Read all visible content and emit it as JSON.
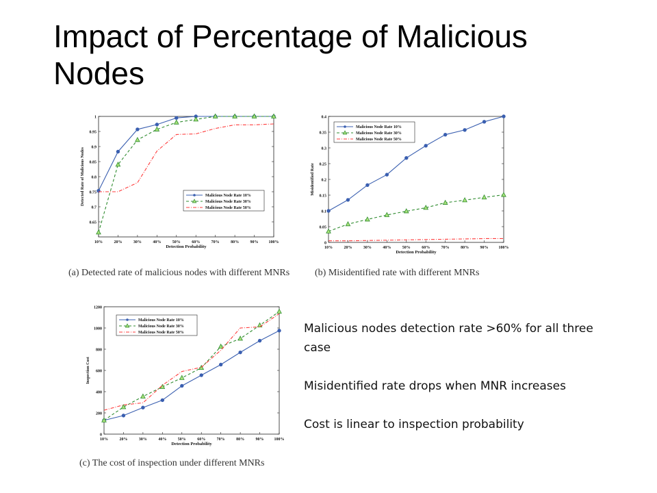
{
  "slide": {
    "title": "Impact of Percentage of Malicious Nodes",
    "bullets": [
      "Malicious nodes detection rate >60% for all three case",
      "Misidentified rate drops when MNR increases",
      "Cost is linear to inspection probability"
    ]
  },
  "colors": {
    "s10": "#3a5fb0",
    "s30": "#2e8b2e",
    "s50": "#ff3b3b",
    "marker30_fill": "#a9e27a"
  },
  "chart_data": [
    {
      "type": "line",
      "caption": "(a) Detected rate of malicious nodes with different MNRs",
      "xlabel": "Detection Probability",
      "ylabel": "Detected Rate of Malicious Nodes",
      "categories": [
        "10%",
        "20%",
        "30%",
        "40%",
        "50%",
        "60%",
        "70%",
        "80%",
        "90%",
        "100%"
      ],
      "ylim": [
        0.6,
        1.0
      ],
      "yticks": [
        0.65,
        0.7,
        0.75,
        0.8,
        0.85,
        0.9,
        0.95,
        1
      ],
      "ytick_labels": [
        "0.65",
        "0.7",
        "0.75",
        "0.8",
        "0.85",
        "0.9",
        "0.95",
        "1"
      ],
      "legend_position": "center-right",
      "series": [
        {
          "name": "Malicious Node Rate 10%",
          "style": "solid",
          "marker": "circle",
          "values": [
            0.753,
            0.883,
            0.957,
            0.973,
            0.995,
            1.0,
            1.0,
            1.0,
            1.0,
            1.0
          ]
        },
        {
          "name": "Malicious Node Rate 30%",
          "style": "dashed",
          "marker": "triangle",
          "values": [
            0.615,
            0.84,
            0.922,
            0.957,
            0.98,
            0.99,
            1.0,
            1.0,
            1.0,
            1.0
          ]
        },
        {
          "name": "Malicious Node Rate 50%",
          "style": "dashdot",
          "marker": "none",
          "values": [
            0.75,
            0.75,
            0.78,
            0.885,
            0.94,
            0.942,
            0.96,
            0.972,
            0.972,
            0.975
          ]
        }
      ]
    },
    {
      "type": "line",
      "caption": "(b) Misidentified rate with different MNRs",
      "xlabel": "Detection Probability",
      "ylabel": "Misidentified Rate",
      "categories": [
        "10%",
        "20%",
        "30%",
        "40%",
        "50%",
        "60%",
        "70%",
        "80%",
        "90%",
        "100%"
      ],
      "ylim": [
        0,
        0.4
      ],
      "yticks": [
        0,
        0.05,
        0.1,
        0.15,
        0.2,
        0.25,
        0.3,
        0.35,
        0.4
      ],
      "ytick_labels": [
        "0",
        "0.05",
        "0.1",
        "0.15",
        "0.2",
        "0.25",
        "0.3",
        "0.35",
        "0.4"
      ],
      "legend_position": "top-left",
      "series": [
        {
          "name": "Malicious Node Rate 10%",
          "style": "solid",
          "marker": "circle",
          "values": [
            0.1,
            0.135,
            0.182,
            0.215,
            0.268,
            0.307,
            0.342,
            0.357,
            0.383,
            0.4
          ]
        },
        {
          "name": "Malicious Node Rate 30%",
          "style": "dashed",
          "marker": "triangle",
          "values": [
            0.035,
            0.058,
            0.073,
            0.087,
            0.099,
            0.11,
            0.126,
            0.134,
            0.143,
            0.151
          ]
        },
        {
          "name": "Malicious Node Rate 50%",
          "style": "dashdot",
          "marker": "none",
          "values": [
            0.005,
            0.005,
            0.006,
            0.007,
            0.008,
            0.009,
            0.01,
            0.011,
            0.012,
            0.012
          ]
        }
      ]
    },
    {
      "type": "line",
      "caption": "(c) The cost of inspection under different MNRs",
      "xlabel": "Detection Probability",
      "ylabel": "Inspection Cost",
      "categories": [
        "10%",
        "20%",
        "30%",
        "40%",
        "50%",
        "60%",
        "70%",
        "80%",
        "90%",
        "100%"
      ],
      "ylim": [
        0,
        1200
      ],
      "yticks": [
        0,
        200,
        400,
        600,
        800,
        1000,
        1200
      ],
      "ytick_labels": [
        "0",
        "200",
        "400",
        "600",
        "800",
        "1000",
        "1200"
      ],
      "legend_position": "top-left",
      "series": [
        {
          "name": "Malicious Node Rate 10%",
          "style": "solid",
          "marker": "circle",
          "values": [
            130,
            175,
            250,
            320,
            455,
            555,
            655,
            770,
            880,
            975
          ]
        },
        {
          "name": "Malicious Node Rate 30%",
          "style": "dashed",
          "marker": "triangle",
          "values": [
            130,
            255,
            355,
            445,
            530,
            625,
            825,
            900,
            1025,
            1155
          ]
        },
        {
          "name": "Malicious Node Rate 50%",
          "style": "dashdot",
          "marker": "none",
          "values": [
            225,
            275,
            295,
            460,
            590,
            630,
            790,
            1000,
            1010,
            1135
          ]
        }
      ]
    }
  ]
}
